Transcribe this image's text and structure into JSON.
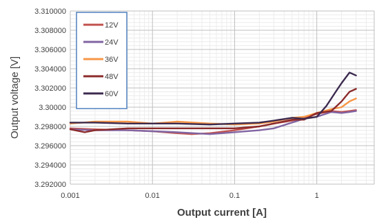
{
  "chart_data": {
    "type": "line",
    "xlabel": "Output current [A]",
    "ylabel": "Output voltage [V]",
    "x_scale": "log",
    "xlim": [
      0.001,
      5
    ],
    "ylim": [
      3.292,
      3.31
    ],
    "x_ticks": [
      0.001,
      0.01,
      0.1,
      1
    ],
    "x_tick_labels": [
      "0.001",
      "0.01",
      "0.1",
      "1"
    ],
    "y_ticks": [
      3.292,
      3.294,
      3.296,
      3.298,
      3.3,
      3.302,
      3.304,
      3.306,
      3.308,
      3.31
    ],
    "y_tick_labels": [
      "3.292000",
      "3.294000",
      "3.296000",
      "3.298000",
      "3.30000",
      "3.302000",
      "3.304000",
      "3.306000",
      "3.308000",
      "3.310000"
    ],
    "grid": "major and minor, both axes",
    "legend_position": "top-left",
    "series": [
      {
        "name": "12V",
        "color": "#c0504d",
        "points": [
          [
            0.001,
            3.2978
          ],
          [
            0.002,
            3.2977
          ],
          [
            0.005,
            3.2976
          ],
          [
            0.01,
            3.2975
          ],
          [
            0.02,
            3.2973
          ],
          [
            0.03,
            3.2972
          ],
          [
            0.05,
            3.2973
          ],
          [
            0.1,
            3.2976
          ],
          [
            0.2,
            3.298
          ],
          [
            0.3,
            3.2983
          ],
          [
            0.5,
            3.2986
          ],
          [
            0.7,
            3.2989
          ],
          [
            1.0,
            3.2993
          ],
          [
            1.5,
            3.2996
          ],
          [
            2.0,
            3.2995
          ],
          [
            2.5,
            3.2996
          ],
          [
            3.0,
            3.2997
          ]
        ]
      },
      {
        "name": "24V",
        "color": "#8064a2",
        "points": [
          [
            0.001,
            3.2977
          ],
          [
            0.002,
            3.2976
          ],
          [
            0.005,
            3.2976
          ],
          [
            0.01,
            3.2975
          ],
          [
            0.02,
            3.2974
          ],
          [
            0.05,
            3.2972
          ],
          [
            0.1,
            3.2974
          ],
          [
            0.2,
            3.2976
          ],
          [
            0.3,
            3.2978
          ],
          [
            0.5,
            3.2984
          ],
          [
            0.7,
            3.2988
          ],
          [
            1.0,
            3.299
          ],
          [
            1.5,
            3.2995
          ],
          [
            2.0,
            3.2994
          ],
          [
            2.5,
            3.2995
          ],
          [
            3.0,
            3.2996
          ]
        ]
      },
      {
        "name": "36V",
        "color": "#f79646",
        "points": [
          [
            0.001,
            3.2983
          ],
          [
            0.002,
            3.2985
          ],
          [
            0.005,
            3.2985
          ],
          [
            0.01,
            3.2983
          ],
          [
            0.02,
            3.2985
          ],
          [
            0.05,
            3.2983
          ],
          [
            0.1,
            3.2982
          ],
          [
            0.2,
            3.2983
          ],
          [
            0.3,
            3.2985
          ],
          [
            0.5,
            3.2989
          ],
          [
            0.7,
            3.299
          ],
          [
            1.0,
            3.2994
          ],
          [
            1.5,
            3.2998
          ],
          [
            2.0,
            3.3
          ],
          [
            2.5,
            3.3006
          ],
          [
            3.0,
            3.3009
          ]
        ]
      },
      {
        "name": "48V",
        "color": "#8b2a2a",
        "points": [
          [
            0.001,
            3.2977
          ],
          [
            0.0015,
            3.2974
          ],
          [
            0.002,
            3.2976
          ],
          [
            0.005,
            3.2978
          ],
          [
            0.01,
            3.2978
          ],
          [
            0.02,
            3.2978
          ],
          [
            0.05,
            3.2978
          ],
          [
            0.1,
            3.2978
          ],
          [
            0.2,
            3.298
          ],
          [
            0.3,
            3.2983
          ],
          [
            0.5,
            3.2987
          ],
          [
            0.7,
            3.2987
          ],
          [
            1.0,
            3.2994
          ],
          [
            1.5,
            3.2996
          ],
          [
            2.0,
            3.3006
          ],
          [
            2.5,
            3.3016
          ],
          [
            3.0,
            3.3019
          ]
        ]
      },
      {
        "name": "60V",
        "color": "#3b2a4f",
        "points": [
          [
            0.001,
            3.2984
          ],
          [
            0.002,
            3.2984
          ],
          [
            0.005,
            3.2983
          ],
          [
            0.01,
            3.2983
          ],
          [
            0.02,
            3.2983
          ],
          [
            0.05,
            3.2982
          ],
          [
            0.1,
            3.2983
          ],
          [
            0.2,
            3.2984
          ],
          [
            0.3,
            3.2986
          ],
          [
            0.5,
            3.2989
          ],
          [
            0.7,
            3.2988
          ],
          [
            1.0,
            3.299
          ],
          [
            1.3,
            3.3001
          ],
          [
            1.7,
            3.3016
          ],
          [
            2.0,
            3.3025
          ],
          [
            2.5,
            3.3036
          ],
          [
            3.0,
            3.3033
          ]
        ]
      }
    ]
  }
}
